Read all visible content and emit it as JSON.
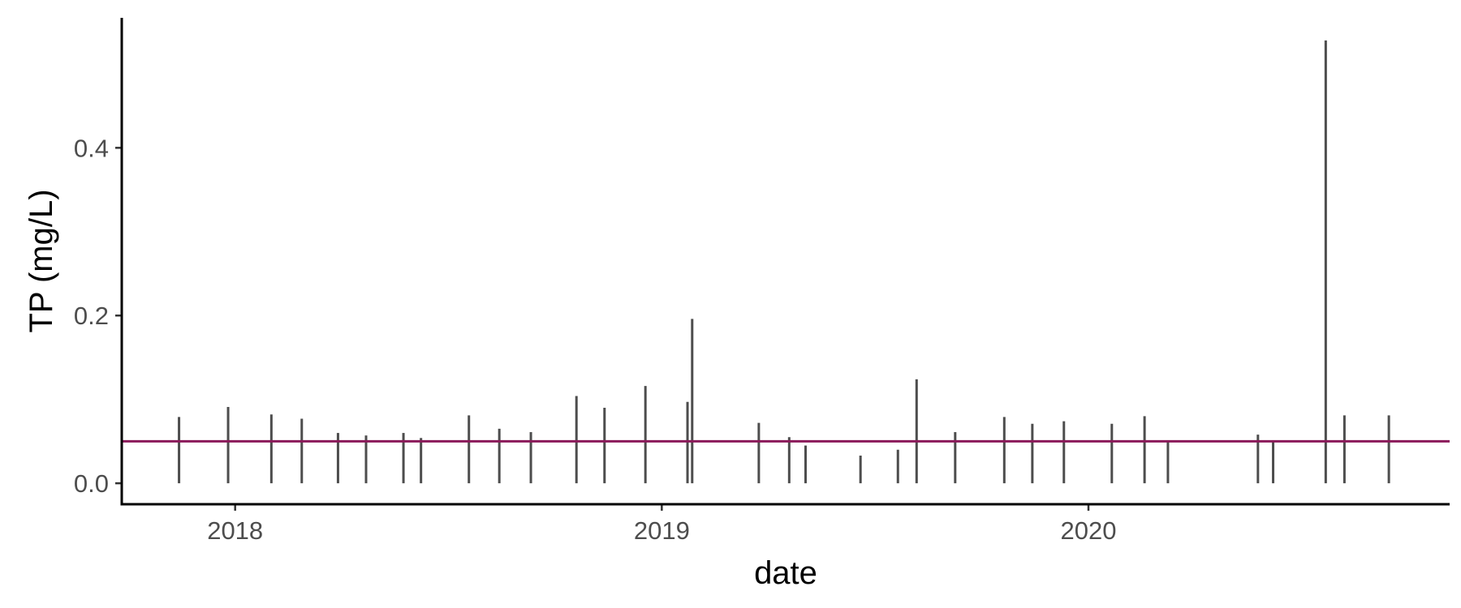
{
  "chart_data": {
    "type": "bar",
    "mark": "vertical segments from 0 to value",
    "xlabel": "date",
    "ylabel": "TP (mg/L)",
    "x_range": [
      "2017-09-26",
      "2020-11-05"
    ],
    "ylim": [
      -0.025,
      0.555
    ],
    "x_ticks": [
      {
        "date": "2018-01-01",
        "label": "2018"
      },
      {
        "date": "2019-01-01",
        "label": "2019"
      },
      {
        "date": "2020-01-01",
        "label": "2020"
      }
    ],
    "y_ticks": [
      {
        "value": 0.0,
        "label": "0.0"
      },
      {
        "value": 0.2,
        "label": "0.2"
      },
      {
        "value": 0.4,
        "label": "0.4"
      }
    ],
    "reference_line": {
      "y": 0.05,
      "color": "#8B1A5A"
    },
    "points": [
      {
        "date": "2017-11-14",
        "value": 0.079
      },
      {
        "date": "2017-12-26",
        "value": 0.091
      },
      {
        "date": "2018-02-01",
        "value": 0.082
      },
      {
        "date": "2018-02-27",
        "value": 0.077
      },
      {
        "date": "2018-03-30",
        "value": 0.06
      },
      {
        "date": "2018-04-23",
        "value": 0.057
      },
      {
        "date": "2018-05-25",
        "value": 0.06
      },
      {
        "date": "2018-06-09",
        "value": 0.054
      },
      {
        "date": "2018-07-20",
        "value": 0.081
      },
      {
        "date": "2018-08-15",
        "value": 0.065
      },
      {
        "date": "2018-09-11",
        "value": 0.061
      },
      {
        "date": "2018-10-20",
        "value": 0.104
      },
      {
        "date": "2018-11-13",
        "value": 0.09
      },
      {
        "date": "2018-12-18",
        "value": 0.116
      },
      {
        "date": "2019-01-23",
        "value": 0.097
      },
      {
        "date": "2019-01-27",
        "value": 0.196
      },
      {
        "date": "2019-03-25",
        "value": 0.072
      },
      {
        "date": "2019-04-20",
        "value": 0.055
      },
      {
        "date": "2019-05-04",
        "value": 0.045
      },
      {
        "date": "2019-06-20",
        "value": 0.033
      },
      {
        "date": "2019-07-22",
        "value": 0.04
      },
      {
        "date": "2019-08-07",
        "value": 0.124
      },
      {
        "date": "2019-09-09",
        "value": 0.061
      },
      {
        "date": "2019-10-21",
        "value": 0.079
      },
      {
        "date": "2019-11-14",
        "value": 0.071
      },
      {
        "date": "2019-12-11",
        "value": 0.074
      },
      {
        "date": "2020-01-21",
        "value": 0.071
      },
      {
        "date": "2020-02-18",
        "value": 0.08
      },
      {
        "date": "2020-03-09",
        "value": 0.05
      },
      {
        "date": "2020-05-25",
        "value": 0.058
      },
      {
        "date": "2020-06-07",
        "value": 0.05
      },
      {
        "date": "2020-07-22",
        "value": 0.528
      },
      {
        "date": "2020-08-07",
        "value": 0.081
      },
      {
        "date": "2020-09-14",
        "value": 0.081
      }
    ]
  }
}
